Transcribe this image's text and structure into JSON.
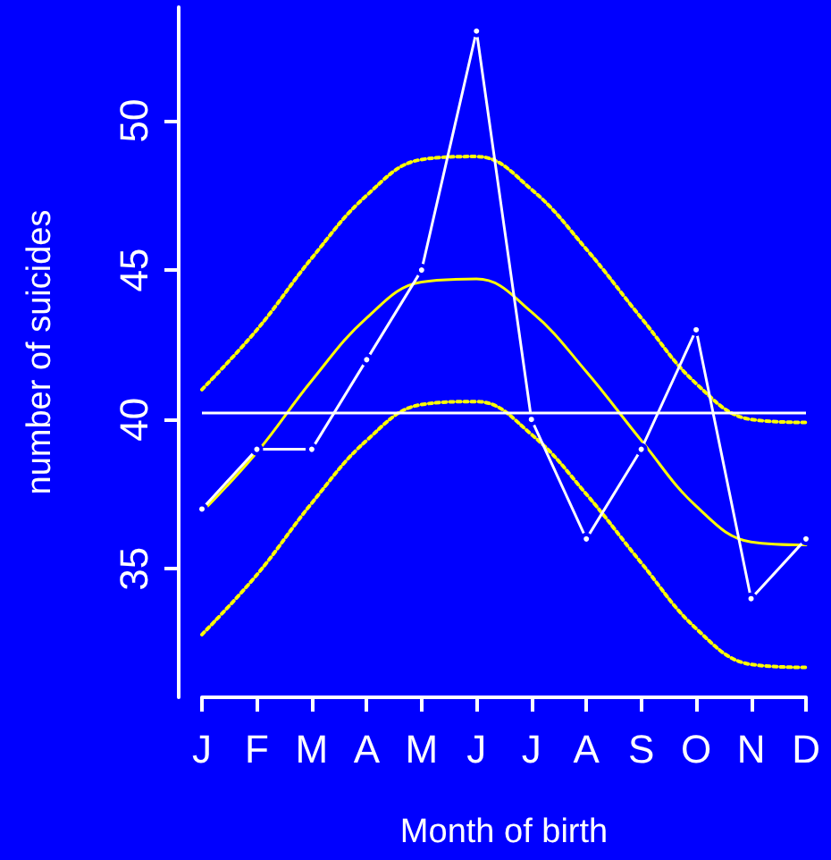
{
  "chart_data": {
    "type": "line",
    "xlabel": "Month of birth",
    "ylabel": "number of suicides",
    "categories": [
      "J",
      "F",
      "M",
      "A",
      "M",
      "J",
      "J",
      "A",
      "S",
      "O",
      "N",
      "D"
    ],
    "series": [
      {
        "color": "#ffffff",
        "marker": "circle",
        "line_style": "solid",
        "values": [
          37,
          39,
          39,
          42,
          45,
          53,
          40,
          36,
          39,
          43,
          34,
          36
        ]
      },
      {
        "color": "#ffff00",
        "marker": "none",
        "line_style": "solid",
        "values": [
          36.9,
          38.9,
          41.3,
          43.4,
          44.6,
          44.7,
          43.6,
          41.6,
          39.3,
          37.1,
          35.9,
          35.8
        ]
      },
      {
        "color": "#ffff00",
        "marker": "none",
        "line_style": "dotted",
        "values": [
          41.0,
          43.0,
          45.4,
          47.5,
          48.7,
          48.8,
          47.7,
          45.7,
          43.4,
          41.2,
          40.0,
          39.9
        ]
      },
      {
        "color": "#ffff00",
        "marker": "none",
        "line_style": "dotted",
        "values": [
          32.8,
          34.8,
          37.2,
          39.3,
          40.5,
          40.6,
          39.5,
          37.5,
          35.2,
          33.0,
          31.8,
          31.7
        ]
      }
    ],
    "ref_lines": [
      {
        "axis": "y",
        "value": 40.25,
        "color": "#ffffff"
      }
    ],
    "ylim": [
      30.7,
      53.8
    ],
    "yticks": [
      35,
      40,
      45,
      50
    ],
    "grid": false
  }
}
